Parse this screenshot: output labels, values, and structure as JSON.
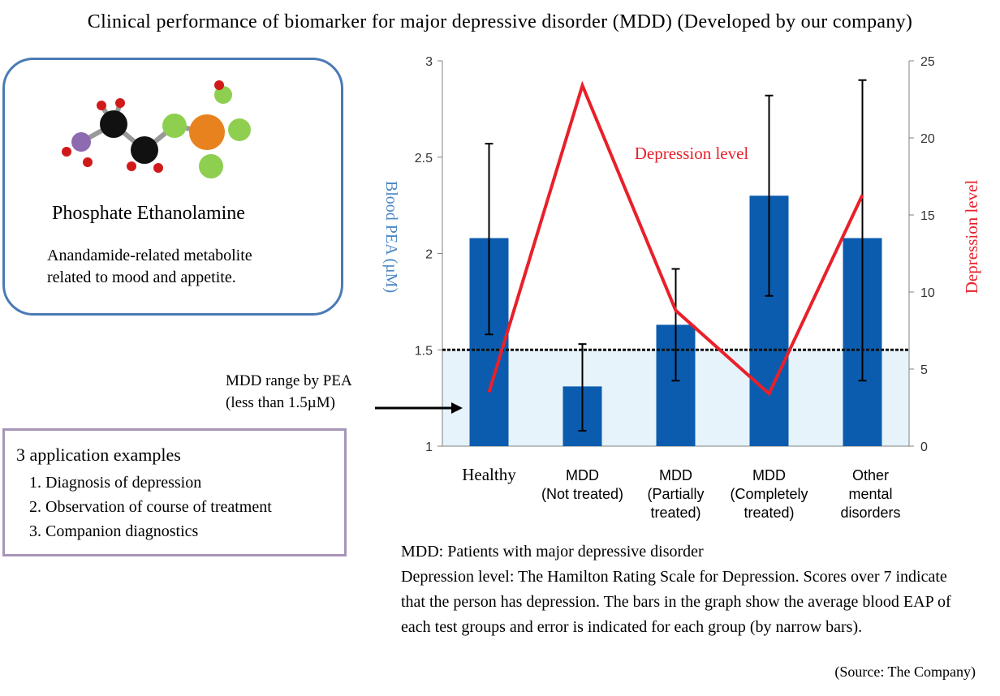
{
  "title": "Clinical performance of biomarker for major depressive disorder (MDD) (Developed by our company)",
  "molecule": {
    "name": "Phosphate Ethanolamine",
    "desc_line1": "Anandamide-related metabolite",
    "desc_line2": "related to mood and appetite."
  },
  "applications": {
    "title": "3 application  examples",
    "items": [
      "1. Diagnosis of depression",
      "2. Observation of course of treatment",
      "3. Companion diagnostics"
    ]
  },
  "mdd_range": {
    "line1": "MDD range by PEA",
    "line2": "(less than 1.5µM)"
  },
  "footnotes": {
    "line1": "MDD: Patients with major depressive disorder",
    "line2": "Depression level:  The Hamilton Rating Scale for Depression. Scores over 7 indicate that the person has depression. The bars in the graph show the average blood EAP of each test groups and error is indicated for each group (by narrow bars)."
  },
  "source": "(Source: The Company)",
  "colors": {
    "bar": "#0b5cae",
    "line": "#e8202a",
    "threshold_fill": "#e6f3fb",
    "left_axis_label": "#4a86c5",
    "right_axis_label": "#e8202a"
  },
  "chart_data": {
    "type": "bar",
    "categories": [
      [
        "Healthy"
      ],
      [
        "MDD",
        "(Not treated)"
      ],
      [
        "MDD",
        "(Partially",
        "treated)"
      ],
      [
        "MDD",
        "(Completely",
        "treated)"
      ],
      [
        "Other",
        "mental",
        "disorders"
      ]
    ],
    "series": [
      {
        "values": [
          2.08,
          1.31,
          1.63,
          2.3,
          2.08
        ],
        "error_low": [
          1.58,
          1.08,
          1.34,
          1.78,
          1.34
        ],
        "error_high": [
          2.57,
          1.53,
          1.92,
          2.82,
          2.9
        ],
        "axis": "left"
      },
      {
        "name": "Depression level",
        "values": [
          3.5,
          23.4,
          8.8,
          3.4,
          16.3
        ],
        "axis": "right"
      }
    ],
    "ylabel": "Blood PEA (µM)",
    "ylim": [
      1,
      3
    ],
    "yticks": [
      "1",
      "1.5",
      "2",
      "2.5",
      "3"
    ],
    "y2label": "Depression level",
    "y2lim": [
      0,
      25
    ],
    "y2ticks": [
      "0",
      "5",
      "10",
      "15",
      "20",
      "25"
    ],
    "threshold": 1.5,
    "line_annotation": "Depression level"
  }
}
